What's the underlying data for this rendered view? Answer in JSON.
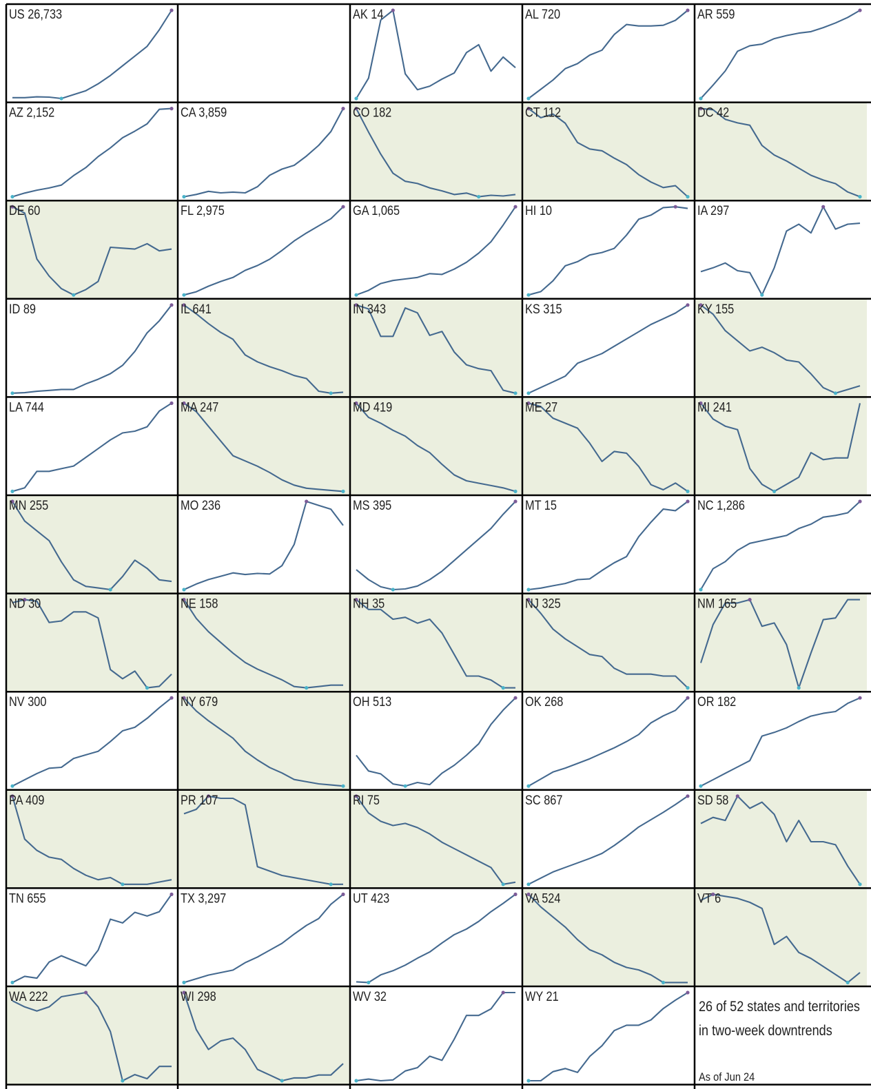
{
  "colors": {
    "line": "#44698f",
    "downtrend_fill": "#ebefdf",
    "marker_low": "#49b3c9",
    "marker_high": "#7c5b98",
    "grid": "#000000"
  },
  "summary": {
    "line1": "26 of 52 states and territories",
    "line2": "in two-week downtrends",
    "as_of": "As of Jun 24"
  },
  "chart_data": {
    "type": "line",
    "layout": "small-multiples",
    "columns": 5,
    "title": "",
    "xlabel": "",
    "ylabel": "",
    "grid": false,
    "panels": [
      {
        "label": "US 26,733",
        "downtrend": false,
        "values": [
          16.5,
          16.5,
          16.8,
          16.7,
          16.2,
          17.6,
          19,
          21.5,
          24.5,
          28,
          31.5,
          35,
          41,
          48
        ]
      },
      {
        "label": "",
        "blank": true
      },
      {
        "label": "AK 14",
        "downtrend": false,
        "values": [
          0,
          23,
          89,
          100,
          28,
          10,
          14,
          22,
          29,
          52,
          61,
          31,
          47,
          35
        ]
      },
      {
        "label": "AL 720",
        "downtrend": false,
        "values": [
          5,
          18,
          31,
          47,
          54,
          66,
          73,
          95,
          109,
          107,
          107,
          108,
          115,
          129
        ]
      },
      {
        "label": "AR 559",
        "downtrend": false,
        "values": [
          5,
          22,
          40,
          65,
          72,
          74,
          81,
          85,
          88,
          90,
          95,
          101,
          108,
          117
        ]
      },
      {
        "label": "AZ 2,152",
        "downtrend": false,
        "values": [
          5,
          10,
          14,
          17,
          21,
          34,
          45,
          60,
          72,
          86,
          95,
          105,
          125,
          126
        ]
      },
      {
        "label": "CA 3,859",
        "downtrend": false,
        "values": [
          5,
          8,
          12,
          10,
          11,
          10,
          18,
          33,
          41,
          46,
          58,
          72,
          90,
          120
        ]
      },
      {
        "label": "CO 182",
        "downtrend": true,
        "values": [
          200,
          168,
          138,
          112,
          101,
          98,
          92,
          88,
          83,
          85,
          80,
          82,
          81,
          83
        ]
      },
      {
        "label": "CT 112",
        "downtrend": true,
        "values": [
          200,
          190,
          194,
          184,
          163,
          156,
          154,
          146,
          139,
          128,
          120,
          114,
          116,
          104
        ]
      },
      {
        "label": "DC 42",
        "downtrend": true,
        "values": [
          200,
          199,
          191,
          188,
          186,
          169,
          161,
          156,
          150,
          144,
          140,
          137,
          130,
          126
        ]
      },
      {
        "label": "DE 60",
        "downtrend": true,
        "values": [
          200,
          193,
          142,
          123,
          109,
          102,
          108,
          117,
          155,
          154,
          153,
          159,
          151,
          153
        ]
      },
      {
        "label": "FL 2,975",
        "downtrend": false,
        "values": [
          5,
          9,
          16,
          22,
          27,
          36,
          42,
          50,
          61,
          73,
          83,
          92,
          101,
          116
        ]
      },
      {
        "label": "GA 1,065",
        "downtrend": false,
        "values": [
          5,
          11,
          20,
          24,
          26,
          28,
          33,
          32,
          39,
          48,
          60,
          75,
          97,
          121
        ]
      },
      {
        "label": "HI 10",
        "downtrend": false,
        "values": [
          5,
          9,
          22,
          40,
          45,
          53,
          56,
          61,
          77,
          96,
          101,
          110,
          111,
          109
        ]
      },
      {
        "label": "IA 297",
        "downtrend": false,
        "values": [
          24,
          28,
          33,
          25,
          23,
          0,
          28,
          66,
          73,
          64,
          91,
          68,
          73,
          74
        ]
      },
      {
        "label": "ID 89",
        "downtrend": false,
        "values": [
          5,
          5.5,
          7,
          8,
          9,
          9,
          15,
          20,
          26,
          35,
          50,
          70,
          83,
          100
        ]
      },
      {
        "label": "IL 641",
        "downtrend": true,
        "values": [
          200,
          191,
          181,
          172,
          165,
          149,
          142,
          137,
          133,
          128,
          125,
          112,
          110,
          111
        ]
      },
      {
        "label": "IN 343",
        "downtrend": true,
        "values": [
          200,
          196,
          168,
          168,
          197,
          192,
          169,
          173,
          152,
          139,
          135,
          133,
          113,
          110
        ]
      },
      {
        "label": "KS 315",
        "downtrend": false,
        "values": [
          5,
          12,
          19,
          26,
          42,
          48,
          54,
          63,
          72,
          81,
          90,
          97,
          104,
          114
        ]
      },
      {
        "label": "KY 155",
        "downtrend": true,
        "values": [
          200,
          190,
          172,
          161,
          150,
          154,
          148,
          140,
          138,
          125,
          110,
          104,
          108,
          112
        ]
      },
      {
        "label": "LA 744",
        "downtrend": false,
        "values": [
          5,
          9,
          28,
          28,
          31,
          34,
          44,
          54,
          64,
          72,
          74,
          79,
          97,
          106
        ]
      },
      {
        "label": "MA 247",
        "downtrend": true,
        "values": [
          200,
          192,
          178,
          164,
          150,
          145,
          140,
          134,
          127,
          122,
          119,
          118,
          117,
          116
        ]
      },
      {
        "label": "MD 419",
        "downtrend": true,
        "values": [
          200,
          188,
          183,
          177,
          172,
          164,
          158,
          148,
          139,
          134,
          132,
          130,
          128,
          125
        ]
      },
      {
        "label": "ME 27",
        "downtrend": true,
        "values": [
          200,
          198,
          191,
          188,
          185,
          176,
          165,
          171,
          170,
          162,
          151,
          148,
          152,
          147
        ]
      },
      {
        "label": "MI 241",
        "downtrend": true,
        "values": [
          200,
          191,
          187,
          185,
          163,
          154,
          150,
          154,
          158,
          172,
          168,
          169,
          169,
          200
        ]
      },
      {
        "label": "MN 255",
        "downtrend": true,
        "values": [
          200,
          188,
          182,
          176,
          163,
          152,
          148,
          147,
          146,
          154,
          164,
          159,
          152,
          151
        ]
      },
      {
        "label": "MO 236",
        "downtrend": false,
        "values": [
          5,
          15,
          23,
          29,
          35,
          32,
          34,
          33,
          48,
          86,
          163,
          156,
          149,
          120
        ]
      },
      {
        "label": "MS 395",
        "downtrend": false,
        "values": [
          32,
          18,
          8,
          4,
          5,
          9,
          18,
          30,
          45,
          60,
          75,
          90,
          110,
          128
        ]
      },
      {
        "label": "MT 15",
        "downtrend": false,
        "values": [
          5,
          7,
          10,
          13,
          18,
          19,
          30,
          40,
          48,
          74,
          93,
          110,
          108,
          120
        ]
      },
      {
        "label": "NC 1,286",
        "downtrend": false,
        "values": [
          5,
          29,
          37,
          50,
          58,
          61,
          64,
          67,
          75,
          80,
          88,
          90,
          93,
          106
        ]
      },
      {
        "label": "ND 30",
        "downtrend": true,
        "values": [
          200,
          202,
          201,
          187,
          188,
          194,
          194,
          190,
          156,
          150,
          155,
          144,
          145,
          153
        ]
      },
      {
        "label": "NE 158",
        "downtrend": true,
        "values": [
          200,
          186,
          176,
          168,
          160,
          153,
          148,
          144,
          140,
          135,
          134,
          135,
          136,
          136
        ]
      },
      {
        "label": "NH 35",
        "downtrend": true,
        "values": [
          200,
          195,
          195,
          190,
          191,
          188,
          190,
          183,
          172,
          161,
          161,
          159,
          155,
          155
        ]
      },
      {
        "label": "NJ 325",
        "downtrend": true,
        "values": [
          200,
          193,
          185,
          180,
          176,
          172,
          171,
          165,
          162,
          162,
          162,
          161,
          161,
          155
        ]
      },
      {
        "label": "NM 165",
        "downtrend": true,
        "values": [
          160,
          183,
          196,
          196,
          198,
          182,
          184,
          171,
          145,
          166,
          186,
          187,
          198,
          198
        ]
      },
      {
        "label": "NV 300",
        "downtrend": false,
        "values": [
          5,
          12,
          19,
          25,
          26,
          36,
          40,
          44,
          55,
          67,
          71,
          81,
          93,
          104
        ]
      },
      {
        "label": "NY 679",
        "downtrend": true,
        "values": [
          200,
          188,
          179,
          171,
          163,
          151,
          143,
          136,
          131,
          125,
          123,
          121,
          120,
          119
        ]
      },
      {
        "label": "OH 513",
        "downtrend": false,
        "values": [
          60,
          38,
          34,
          20,
          17,
          22,
          19,
          35,
          46,
          60,
          76,
          103,
          123,
          140
        ]
      },
      {
        "label": "OK 268",
        "downtrend": false,
        "values": [
          5,
          14,
          23,
          28,
          34,
          40,
          47,
          54,
          62,
          71,
          86,
          95,
          102,
          118
        ]
      },
      {
        "label": "OR 182",
        "downtrend": false,
        "values": [
          5,
          12,
          19,
          26,
          33,
          60,
          64,
          69,
          76,
          82,
          85,
          87,
          96,
          102
        ]
      },
      {
        "label": "PA 409",
        "downtrend": true,
        "values": [
          200,
          181,
          176,
          173,
          172,
          168,
          165,
          163,
          164,
          161,
          161,
          161,
          162,
          163
        ]
      },
      {
        "label": "PR 107",
        "downtrend": true,
        "values": [
          200,
          202,
          208,
          207,
          207,
          204,
          176,
          174,
          172,
          171,
          170,
          169,
          168,
          168
        ]
      },
      {
        "label": "RI 75",
        "downtrend": true,
        "values": [
          200,
          192,
          188,
          186,
          187,
          185,
          182,
          178,
          175,
          172,
          169,
          166,
          158,
          159
        ]
      },
      {
        "label": "SC 867",
        "downtrend": false,
        "values": [
          5,
          16,
          27,
          35,
          43,
          51,
          60,
          74,
          90,
          107,
          120,
          133,
          147,
          162
        ]
      },
      {
        "label": "SD 58",
        "downtrend": true,
        "values": [
          200,
          202,
          201,
          209,
          205,
          207,
          203,
          194,
          201,
          194,
          194,
          193,
          186,
          180
        ]
      },
      {
        "label": "TN 655",
        "downtrend": false,
        "values": [
          5,
          15,
          12,
          38,
          48,
          40,
          32,
          57,
          107,
          101,
          118,
          112,
          119,
          147
        ]
      },
      {
        "label": "TX 3,297",
        "downtrend": false,
        "values": [
          5,
          11,
          17,
          21,
          25,
          37,
          46,
          57,
          68,
          83,
          97,
          108,
          131,
          147
        ]
      },
      {
        "label": "UT 423",
        "downtrend": false,
        "values": [
          5,
          4,
          15,
          21,
          29,
          39,
          48,
          61,
          73,
          81,
          92,
          106,
          118,
          131
        ]
      },
      {
        "label": "VA 524",
        "downtrend": true,
        "values": [
          200,
          195,
          191,
          187,
          182,
          178,
          176,
          173,
          171,
          170,
          168,
          165,
          165,
          165
        ]
      },
      {
        "label": "VT 6",
        "downtrend": true,
        "values": [
          200,
          203,
          202,
          201,
          199,
          196,
          178,
          182,
          174,
          171,
          167,
          163,
          159,
          164
        ]
      },
      {
        "label": "WA 222",
        "downtrend": true,
        "values": [
          200,
          197,
          195,
          197,
          202,
          203,
          204,
          197,
          185,
          161,
          164,
          162,
          168,
          168
        ]
      },
      {
        "label": "WI 298",
        "downtrend": true,
        "values": [
          200,
          187,
          180,
          183,
          184,
          180,
          173,
          171,
          169,
          170,
          170,
          171,
          171,
          175
        ]
      },
      {
        "label": "WV 32",
        "downtrend": false,
        "values": [
          5,
          7,
          5,
          6,
          17,
          21,
          35,
          30,
          56,
          85,
          85,
          93,
          113,
          113
        ]
      },
      {
        "label": "WY 21",
        "downtrend": false,
        "values": [
          5,
          5,
          17,
          21,
          16,
          37,
          51,
          71,
          78,
          78,
          85,
          100,
          111,
          121
        ]
      },
      {
        "label": "",
        "blank": true,
        "summary": true
      }
    ]
  }
}
